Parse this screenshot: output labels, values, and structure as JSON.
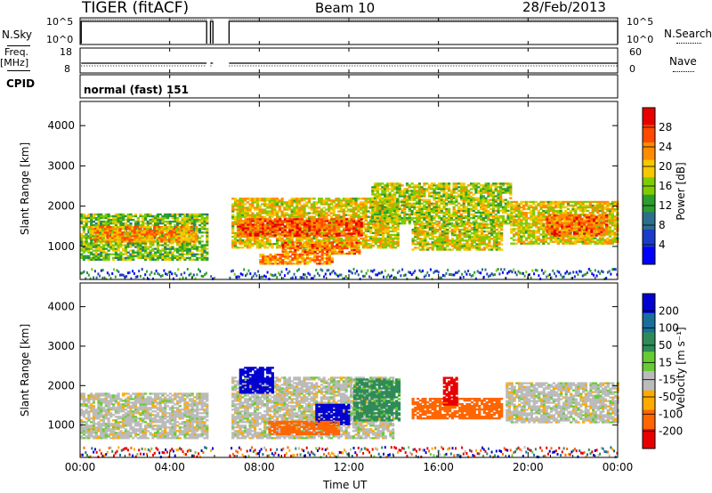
{
  "header": {
    "radar": "TIGER (fitACF)",
    "beam": "Beam 10",
    "date": "28/Feb/2013"
  },
  "noise_panel": {
    "left_label": "N.Sky",
    "right_label": "N.Search",
    "left_ticks": [
      "10^5",
      "10^0"
    ],
    "right_ticks": [
      "10^5",
      "10^0"
    ]
  },
  "freq_panel": {
    "left_label_1": "Freq.",
    "left_label_2": "[MHz]",
    "right_label": "Nave",
    "left_ticks": [
      "18",
      "8"
    ],
    "right_ticks": [
      "60",
      "0"
    ]
  },
  "cpid": {
    "label": "CPID",
    "value": "normal (fast) 151"
  },
  "power_panel": {
    "ylabel": "Slant Range [km]",
    "cbar_label": "Power [dB]",
    "cbar_ticks": [
      "28",
      "24",
      "20",
      "16",
      "12",
      "8",
      "4"
    ],
    "cbar_colors": [
      "#e80000",
      "#ff4800",
      "#ff8c00",
      "#f5c800",
      "#7fcc00",
      "#2d9d2d",
      "#2d6e8c",
      "#1a3cc8",
      "#0000ff"
    ]
  },
  "velocity_panel": {
    "ylabel": "Slant Range [km]",
    "cbar_label": "Velocity [m s⁻¹]",
    "cbar_ticks": [
      "200",
      "100",
      "50",
      "15",
      "-15",
      "-50",
      "-100",
      "-200"
    ],
    "cbar_colors": [
      "#0000d0",
      "#1a6e9a",
      "#2e8b57",
      "#66cc33",
      "#bbbbbb",
      "#ffaa00",
      "#ff6600",
      "#e80000"
    ],
    "ground_scatter_color": "#bbbbbb"
  },
  "x_axis": {
    "label": "Time UT",
    "ticks": [
      "00:00",
      "04:00",
      "08:00",
      "12:00",
      "16:00",
      "20:00",
      "00:00"
    ]
  },
  "chart_data": [
    {
      "type": "heatmap",
      "title": "Power",
      "xlabel": "Time UT",
      "ylabel": "Slant Range [km]",
      "xlim": [
        0,
        24
      ],
      "ylim": [
        180,
        4600
      ],
      "yticks": [
        1000,
        2000,
        3000,
        4000
      ],
      "colorbar": {
        "label": "Power [dB]",
        "ticks": [
          4,
          8,
          12,
          16,
          20,
          24,
          28
        ],
        "range": [
          0,
          30
        ]
      },
      "data_gaps_hours": [
        [
          5.65,
          5.8
        ],
        [
          5.95,
          6.65
        ]
      ],
      "echo_regions": [
        {
          "t0": 0.0,
          "t1": 5.65,
          "r0": 650,
          "r1": 1800,
          "power": 14
        },
        {
          "t0": 0.4,
          "t1": 5.2,
          "r0": 1100,
          "r1": 1500,
          "power": 21
        },
        {
          "t0": 6.65,
          "t1": 14.2,
          "r0": 950,
          "r1": 2200,
          "power": 18
        },
        {
          "t0": 7.0,
          "t1": 12.5,
          "r0": 1250,
          "r1": 1700,
          "power": 25
        },
        {
          "t0": 9.0,
          "t1": 12.5,
          "r0": 800,
          "r1": 1100,
          "power": 23
        },
        {
          "t0": 8.0,
          "t1": 11.2,
          "r0": 550,
          "r1": 800,
          "power": 22
        },
        {
          "t0": 13.0,
          "t1": 19.2,
          "r0": 1550,
          "r1": 2550,
          "power": 16
        },
        {
          "t0": 14.8,
          "t1": 18.8,
          "r0": 900,
          "r1": 1550,
          "power": 17
        },
        {
          "t0": 19.2,
          "t1": 24.0,
          "r0": 1050,
          "r1": 2100,
          "power": 18
        },
        {
          "t0": 20.8,
          "t1": 23.5,
          "r0": 1250,
          "r1": 1750,
          "power": 24
        }
      ]
    },
    {
      "type": "heatmap",
      "title": "Velocity",
      "xlabel": "Time UT",
      "ylabel": "Slant Range [km]",
      "xlim": [
        0,
        24
      ],
      "ylim": [
        180,
        4600
      ],
      "yticks": [
        1000,
        2000,
        3000,
        4000
      ],
      "colorbar": {
        "label": "Velocity [m s⁻¹]",
        "ticks": [
          -200,
          -100,
          -50,
          -15,
          15,
          50,
          100,
          200
        ],
        "range": [
          -250,
          250
        ]
      },
      "echo_regions": [
        {
          "t0": 0.0,
          "t1": 5.65,
          "r0": 650,
          "r1": 1800,
          "velocity": 0
        },
        {
          "t0": 6.65,
          "t1": 14.0,
          "r0": 650,
          "r1": 2200,
          "velocity": 0
        },
        {
          "t0": 7.1,
          "t1": 8.6,
          "r0": 1800,
          "r1": 2450,
          "velocity": 180
        },
        {
          "t0": 10.5,
          "t1": 12.0,
          "r0": 1000,
          "r1": 1500,
          "velocity": 200
        },
        {
          "t0": 8.4,
          "t1": 11.5,
          "r0": 750,
          "r1": 1100,
          "velocity": -70
        },
        {
          "t0": 12.2,
          "t1": 14.2,
          "r0": 1100,
          "r1": 2150,
          "velocity": 45
        },
        {
          "t0": 14.8,
          "t1": 18.8,
          "r0": 1150,
          "r1": 1650,
          "velocity": -90
        },
        {
          "t0": 16.2,
          "t1": 16.8,
          "r0": 1500,
          "r1": 2200,
          "velocity": -170
        },
        {
          "t0": 19.0,
          "t1": 24.0,
          "r0": 1050,
          "r1": 2050,
          "velocity": 0
        }
      ]
    }
  ]
}
